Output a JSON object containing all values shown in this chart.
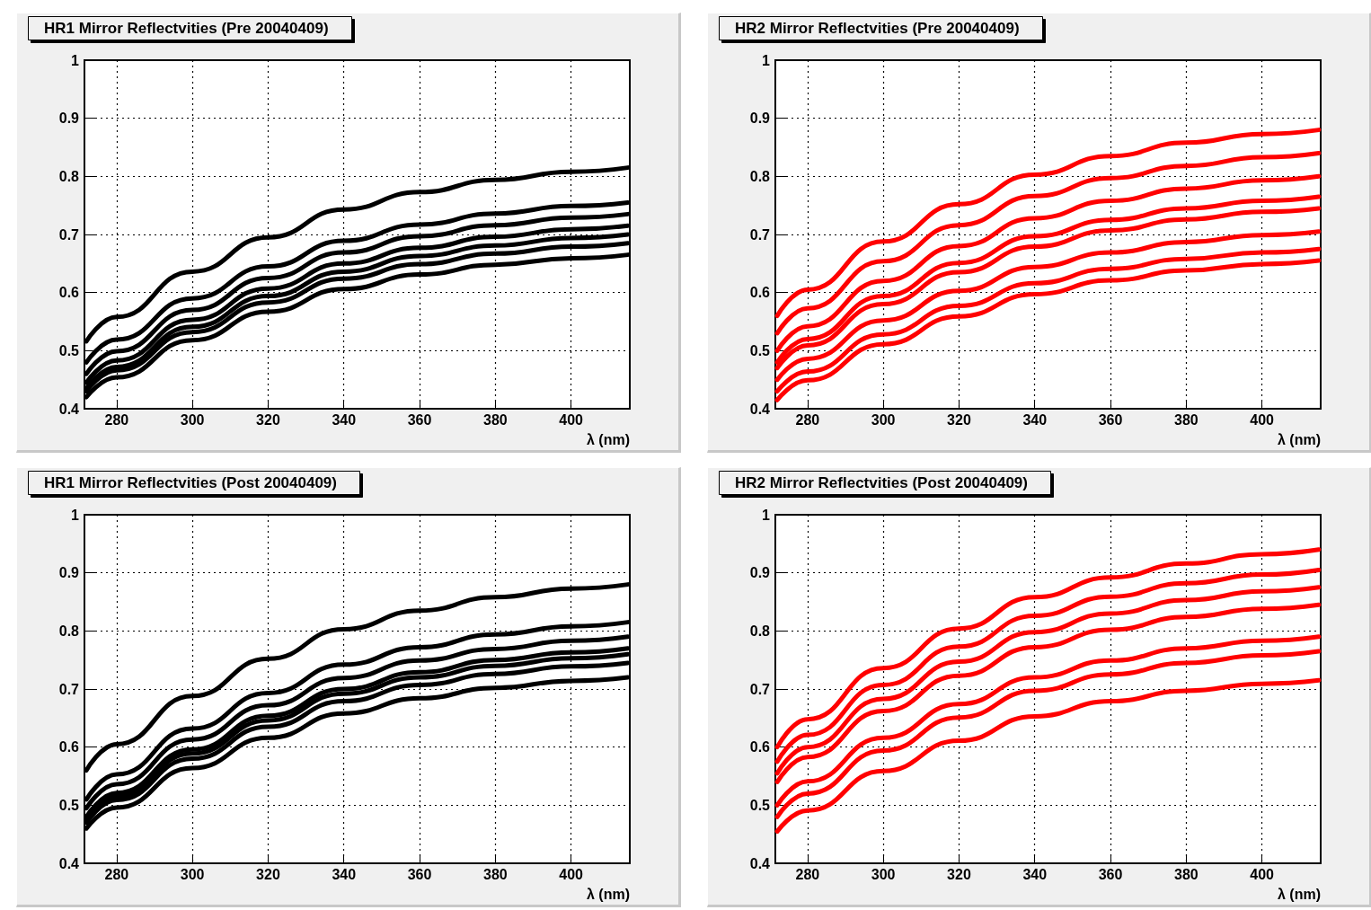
{
  "chart_data": [
    {
      "type": "line",
      "title": "HR1 Mirror Reflectvities (Pre 20040409)",
      "xlabel": "λ (nm)",
      "x": [
        272,
        280,
        300,
        320,
        340,
        360,
        380,
        400,
        415
      ],
      "xlim": [
        271.5,
        415.5
      ],
      "ylim": [
        0.4,
        1
      ],
      "xticks": [
        280,
        300,
        320,
        340,
        360,
        380,
        400
      ],
      "yticks": [
        0.4,
        0.5,
        0.6,
        0.7,
        0.8,
        0.9,
        1
      ],
      "grid": true,
      "marker": "none",
      "line_style": "solid",
      "series": [
        {
          "color": "#000000",
          "values": [
            0.516,
            0.558,
            0.636,
            0.695,
            0.743,
            0.773,
            0.794,
            0.808,
            0.815
          ]
        },
        {
          "color": "#000000",
          "values": [
            0.48,
            0.519,
            0.59,
            0.645,
            0.689,
            0.717,
            0.736,
            0.749,
            0.755
          ]
        },
        {
          "color": "#000000",
          "values": [
            0.46,
            0.499,
            0.57,
            0.625,
            0.669,
            0.697,
            0.716,
            0.729,
            0.735
          ]
        },
        {
          "color": "#000000",
          "values": [
            0.445,
            0.483,
            0.553,
            0.607,
            0.65,
            0.677,
            0.696,
            0.709,
            0.715
          ]
        },
        {
          "color": "#000000",
          "values": [
            0.435,
            0.472,
            0.541,
            0.594,
            0.636,
            0.663,
            0.681,
            0.694,
            0.7
          ]
        },
        {
          "color": "#000000",
          "values": [
            0.43,
            0.466,
            0.532,
            0.583,
            0.624,
            0.649,
            0.667,
            0.679,
            0.685
          ]
        },
        {
          "color": "#000000",
          "values": [
            0.42,
            0.454,
            0.518,
            0.567,
            0.606,
            0.631,
            0.648,
            0.659,
            0.665
          ]
        }
      ]
    },
    {
      "type": "line",
      "title": "HR2 Mirror Reflectvities (Pre 20040409)",
      "xlabel": "λ (nm)",
      "x": [
        272,
        280,
        300,
        320,
        340,
        360,
        380,
        400,
        415
      ],
      "xlim": [
        271.5,
        415.5
      ],
      "ylim": [
        0.4,
        1
      ],
      "xticks": [
        280,
        300,
        320,
        340,
        360,
        380,
        400
      ],
      "yticks": [
        0.4,
        0.5,
        0.6,
        0.7,
        0.8,
        0.9,
        1
      ],
      "grid": true,
      "marker": "none",
      "line_style": "solid",
      "series": [
        {
          "color": "#ff0000",
          "values": [
            0.56,
            0.605,
            0.688,
            0.752,
            0.803,
            0.835,
            0.858,
            0.873,
            0.88
          ]
        },
        {
          "color": "#ff0000",
          "values": [
            0.53,
            0.573,
            0.654,
            0.716,
            0.766,
            0.797,
            0.818,
            0.833,
            0.84
          ]
        },
        {
          "color": "#ff0000",
          "values": [
            0.5,
            0.542,
            0.62,
            0.68,
            0.728,
            0.758,
            0.779,
            0.793,
            0.8
          ]
        },
        {
          "color": "#ff0000",
          "values": [
            0.48,
            0.52,
            0.594,
            0.651,
            0.697,
            0.725,
            0.745,
            0.758,
            0.765
          ]
        },
        {
          "color": "#ff0000",
          "values": [
            0.47,
            0.509,
            0.58,
            0.635,
            0.679,
            0.707,
            0.726,
            0.739,
            0.745
          ]
        },
        {
          "color": "#ff0000",
          "values": [
            0.45,
            0.486,
            0.552,
            0.603,
            0.644,
            0.669,
            0.687,
            0.699,
            0.705
          ]
        },
        {
          "color": "#ff0000",
          "values": [
            0.43,
            0.464,
            0.528,
            0.577,
            0.616,
            0.641,
            0.658,
            0.669,
            0.675
          ]
        },
        {
          "color": "#ff0000",
          "values": [
            0.415,
            0.449,
            0.511,
            0.559,
            0.597,
            0.621,
            0.638,
            0.649,
            0.655
          ]
        }
      ]
    },
    {
      "type": "line",
      "title": "HR1 Mirror Reflectvities (Post 20040409)",
      "xlabel": "λ (nm)",
      "x": [
        272,
        280,
        300,
        320,
        340,
        360,
        380,
        400,
        415
      ],
      "xlim": [
        271.5,
        415.5
      ],
      "ylim": [
        0.4,
        1
      ],
      "xticks": [
        280,
        300,
        320,
        340,
        360,
        380,
        400
      ],
      "yticks": [
        0.4,
        0.5,
        0.6,
        0.7,
        0.8,
        0.9,
        1
      ],
      "grid": true,
      "marker": "none",
      "line_style": "solid",
      "series": [
        {
          "color": "#000000",
          "values": [
            0.56,
            0.605,
            0.688,
            0.752,
            0.803,
            0.835,
            0.858,
            0.873,
            0.88
          ]
        },
        {
          "color": "#000000",
          "values": [
            0.51,
            0.553,
            0.632,
            0.693,
            0.742,
            0.772,
            0.794,
            0.808,
            0.815
          ]
        },
        {
          "color": "#000000",
          "values": [
            0.495,
            0.536,
            0.613,
            0.672,
            0.719,
            0.749,
            0.769,
            0.783,
            0.79
          ]
        },
        {
          "color": "#000000",
          "values": [
            0.48,
            0.521,
            0.596,
            0.654,
            0.7,
            0.729,
            0.75,
            0.763,
            0.77
          ]
        },
        {
          "color": "#000000",
          "values": [
            0.475,
            0.515,
            0.589,
            0.646,
            0.692,
            0.72,
            0.74,
            0.753,
            0.76
          ]
        },
        {
          "color": "#000000",
          "values": [
            0.47,
            0.509,
            0.58,
            0.635,
            0.679,
            0.707,
            0.726,
            0.739,
            0.745
          ]
        },
        {
          "color": "#000000",
          "values": [
            0.46,
            0.496,
            0.564,
            0.616,
            0.658,
            0.684,
            0.702,
            0.714,
            0.72
          ]
        }
      ]
    },
    {
      "type": "line",
      "title": "HR2 Mirror Reflectvities (Post 20040409)",
      "xlabel": "λ (nm)",
      "x": [
        272,
        280,
        300,
        320,
        340,
        360,
        380,
        400,
        415
      ],
      "xlim": [
        271.5,
        415.5
      ],
      "ylim": [
        0.4,
        1
      ],
      "xticks": [
        280,
        300,
        320,
        340,
        360,
        380,
        400
      ],
      "yticks": [
        0.4,
        0.5,
        0.6,
        0.7,
        0.8,
        0.9,
        1
      ],
      "grid": true,
      "marker": "none",
      "line_style": "solid",
      "series": [
        {
          "color": "#ff0000",
          "values": [
            0.6,
            0.648,
            0.736,
            0.804,
            0.858,
            0.892,
            0.916,
            0.932,
            0.94
          ]
        },
        {
          "color": "#ff0000",
          "values": [
            0.575,
            0.621,
            0.707,
            0.773,
            0.826,
            0.859,
            0.882,
            0.897,
            0.905
          ]
        },
        {
          "color": "#ff0000",
          "values": [
            0.555,
            0.6,
            0.683,
            0.747,
            0.798,
            0.83,
            0.853,
            0.868,
            0.875
          ]
        },
        {
          "color": "#ff0000",
          "values": [
            0.54,
            0.583,
            0.662,
            0.723,
            0.772,
            0.802,
            0.824,
            0.838,
            0.845
          ]
        },
        {
          "color": "#ff0000",
          "values": [
            0.5,
            0.541,
            0.616,
            0.674,
            0.72,
            0.749,
            0.77,
            0.783,
            0.79
          ]
        },
        {
          "color": "#ff0000",
          "values": [
            0.48,
            0.52,
            0.594,
            0.651,
            0.697,
            0.725,
            0.745,
            0.758,
            0.765
          ]
        },
        {
          "color": "#ff0000",
          "values": [
            0.455,
            0.491,
            0.559,
            0.611,
            0.653,
            0.679,
            0.697,
            0.709,
            0.715
          ]
        }
      ]
    }
  ]
}
